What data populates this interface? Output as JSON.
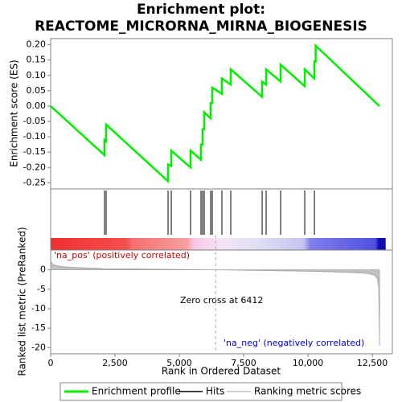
{
  "chart_data": [
    {
      "type": "line",
      "title": "Enrichment plot:",
      "subtitle": "REACTOME_MICRORNA_MIRNA_BIOGENESIS",
      "ylabel": "Enrichment score (ES)",
      "xlim": [
        0,
        13280
      ],
      "ylim": [
        -0.27,
        0.22
      ],
      "yticks": [
        -0.25,
        {
          "value": -0.2,
          "label": "-0.20"
        },
        -0.15,
        {
          "value": -0.1,
          "label": "-0.10"
        },
        -0.05,
        {
          "value": 0,
          "label": "0.00"
        },
        0.05,
        {
          "value": 0.1,
          "label": "0.10"
        },
        0.15,
        {
          "value": 0.2,
          "label": "0.20"
        }
      ],
      "series": [
        {
          "name": "Enrichment profile",
          "color": "#00ee00",
          "x": [
            0,
            2094,
            2094,
            2156,
            2156,
            4563,
            4563,
            4688,
            4688,
            5438,
            5438,
            5844,
            5844,
            5906,
            5906,
            5969,
            5969,
            6219,
            6219,
            6281,
            6281,
            6656,
            6656,
            7000,
            7000,
            8219,
            8219,
            8375,
            8375,
            8938,
            8938,
            9875,
            9875,
            10250,
            10250,
            10300,
            10300,
            12780
          ],
          "values": [
            0,
            -0.16,
            -0.11,
            -0.115,
            -0.06,
            -0.245,
            -0.19,
            -0.195,
            -0.145,
            -0.2,
            -0.145,
            -0.175,
            -0.125,
            -0.125,
            -0.075,
            -0.075,
            -0.02,
            -0.04,
            0.01,
            0.01,
            0.06,
            0.04,
            0.09,
            0.07,
            0.12,
            0.03,
            0.08,
            0.07,
            0.12,
            0.08,
            0.135,
            0.065,
            0.12,
            0.09,
            0.145,
            0.145,
            0.197,
            0
          ]
        }
      ]
    },
    {
      "type": "rug",
      "xlim": [
        0,
        13280
      ],
      "series": [
        {
          "name": "Hits",
          "color": "#000000",
          "x": [
            2094,
            2156,
            4563,
            4688,
            5438,
            5844,
            5906,
            5969,
            6219,
            6281,
            6656,
            7000,
            8219,
            8375,
            8938,
            9875,
            10250
          ]
        }
      ]
    },
    {
      "type": "area",
      "xlabel": "Rank in Ordered Dataset",
      "ylabel": "Ranked list metric (PreRanked)",
      "xlim": [
        0,
        13280
      ],
      "ylim": [
        -21.6,
        5.1
      ],
      "xticks": [
        0,
        {
          "value": 2500,
          "label": "2,500"
        },
        {
          "value": 5000,
          "label": "5,000"
        },
        {
          "value": 7500,
          "label": "7,500"
        },
        {
          "value": 10000,
          "label": "10,000"
        },
        {
          "value": 12500,
          "label": "12,500"
        }
      ],
      "yticks": [
        0,
        -5,
        -10,
        -15,
        -20
      ],
      "zero_cross": 6412,
      "annotations": [
        "'na_pos' (positively correlated)",
        "Zero cross at 6412",
        "'na_neg' (negatively correlated)"
      ],
      "series": [
        {
          "name": "Ranking metric scores",
          "color": "#c0c0c0",
          "x": [
            0,
            50,
            200,
            500,
            1000,
            2000,
            3000,
            4500,
            6412,
            8000,
            10000,
            11500,
            12300,
            12600,
            12700,
            12750,
            12780
          ],
          "values": [
            2.6,
            1.6,
            1.1,
            0.8,
            0.6,
            0.35,
            0.25,
            0.12,
            0,
            -0.15,
            -0.35,
            -0.6,
            -0.9,
            -1.4,
            -2.3,
            -4.5,
            -19.5
          ]
        }
      ]
    }
  ]
}
